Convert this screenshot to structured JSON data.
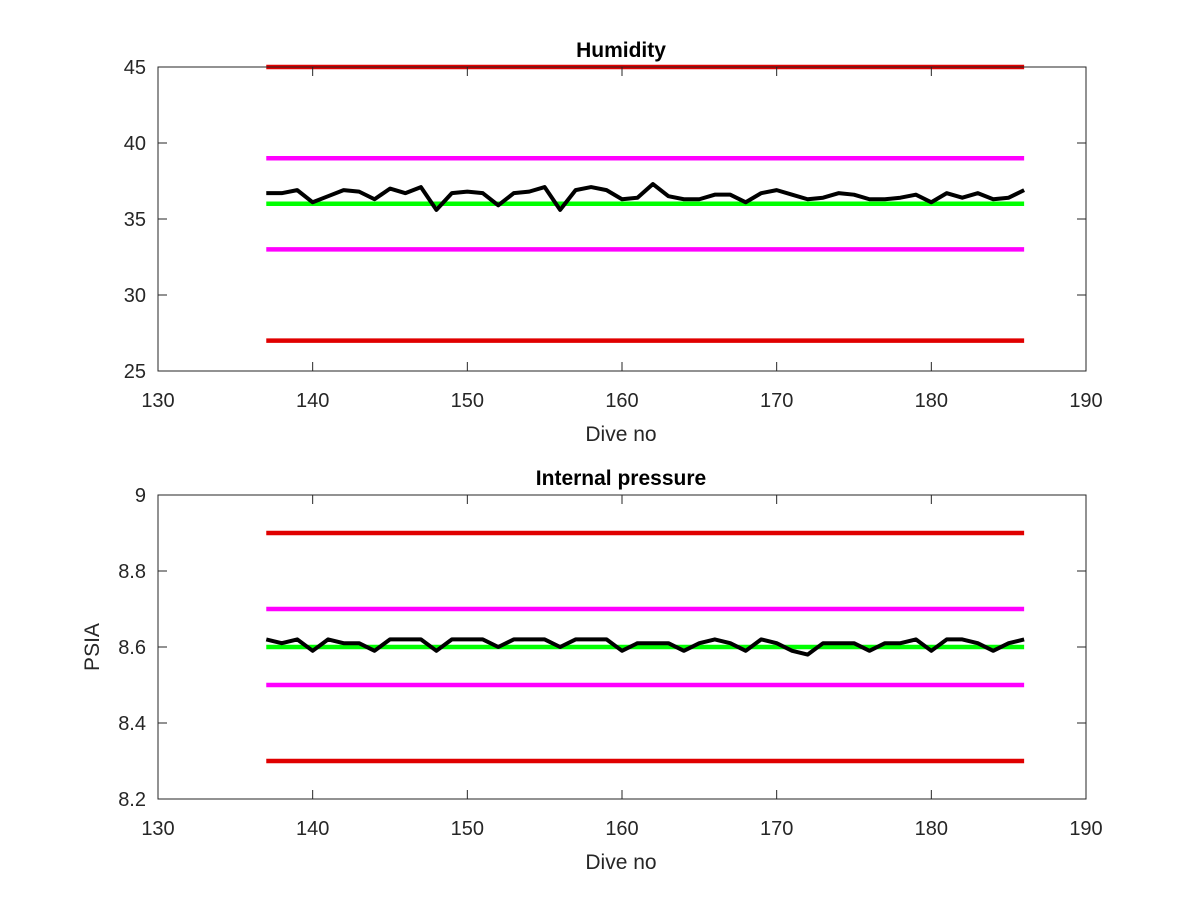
{
  "chart_data": [
    {
      "type": "line",
      "title": "Humidity",
      "xlabel": "Dive no",
      "ylabel": "",
      "xlim": [
        130,
        190
      ],
      "ylim": [
        25,
        45
      ],
      "xticks": [
        "130",
        "140",
        "150",
        "160",
        "170",
        "180",
        "190"
      ],
      "yticks": [
        "25",
        "30",
        "35",
        "40",
        "45"
      ],
      "grid": false,
      "series": [
        {
          "color": "#000000",
          "x": [
            137,
            138,
            139,
            140,
            141,
            142,
            143,
            144,
            145,
            146,
            147,
            148,
            149,
            150,
            151,
            152,
            153,
            154,
            155,
            156,
            157,
            158,
            159,
            160,
            161,
            162,
            163,
            164,
            165,
            166,
            167,
            168,
            169,
            170,
            171,
            172,
            173,
            174,
            175,
            176,
            177,
            178,
            179,
            180,
            181,
            182,
            183,
            184,
            185,
            186
          ],
          "y": [
            36.7,
            36.7,
            36.9,
            36.1,
            36.5,
            36.9,
            36.8,
            36.3,
            37.0,
            36.7,
            37.1,
            35.6,
            36.7,
            36.8,
            36.7,
            35.9,
            36.7,
            36.8,
            37.1,
            35.6,
            36.9,
            37.1,
            36.9,
            36.3,
            36.4,
            37.3,
            36.5,
            36.3,
            36.3,
            36.6,
            36.6,
            36.1,
            36.7,
            36.9,
            36.6,
            36.3,
            36.4,
            36.7,
            36.6,
            36.3,
            36.3,
            36.4,
            36.6,
            36.1,
            36.7,
            36.4,
            36.7,
            36.3,
            36.4,
            36.9
          ]
        },
        {
          "color": "#00ff00",
          "x": [
            137,
            186
          ],
          "y": [
            36,
            36
          ]
        },
        {
          "color": "#ff00ff",
          "x": [
            137,
            186
          ],
          "y": [
            39,
            39
          ]
        },
        {
          "color": "#ff00ff",
          "x": [
            137,
            186
          ],
          "y": [
            33,
            33
          ]
        },
        {
          "color": "#e00000",
          "x": [
            137,
            186
          ],
          "y": [
            45,
            45
          ]
        },
        {
          "color": "#e00000",
          "x": [
            137,
            186
          ],
          "y": [
            27,
            27
          ]
        }
      ]
    },
    {
      "type": "line",
      "title": "Internal pressure",
      "xlabel": "Dive no",
      "ylabel": "PSIA",
      "xlim": [
        130,
        190
      ],
      "ylim": [
        8.2,
        9.0
      ],
      "xticks": [
        "130",
        "140",
        "150",
        "160",
        "170",
        "180",
        "190"
      ],
      "yticks": [
        "8.2",
        "8.4",
        "8.6",
        "8.8",
        "9"
      ],
      "grid": false,
      "series": [
        {
          "color": "#000000",
          "x": [
            137,
            138,
            139,
            140,
            141,
            142,
            143,
            144,
            145,
            146,
            147,
            148,
            149,
            150,
            151,
            152,
            153,
            154,
            155,
            156,
            157,
            158,
            159,
            160,
            161,
            162,
            163,
            164,
            165,
            166,
            167,
            168,
            169,
            170,
            171,
            172,
            173,
            174,
            175,
            176,
            177,
            178,
            179,
            180,
            181,
            182,
            183,
            184,
            185,
            186
          ],
          "y": [
            8.62,
            8.61,
            8.62,
            8.59,
            8.62,
            8.61,
            8.61,
            8.59,
            8.62,
            8.62,
            8.62,
            8.59,
            8.62,
            8.62,
            8.62,
            8.6,
            8.62,
            8.62,
            8.62,
            8.6,
            8.62,
            8.62,
            8.62,
            8.59,
            8.61,
            8.61,
            8.61,
            8.59,
            8.61,
            8.62,
            8.61,
            8.59,
            8.62,
            8.61,
            8.59,
            8.58,
            8.61,
            8.61,
            8.61,
            8.59,
            8.61,
            8.61,
            8.62,
            8.59,
            8.62,
            8.62,
            8.61,
            8.59,
            8.61,
            8.62
          ]
        },
        {
          "color": "#00ff00",
          "x": [
            137,
            186
          ],
          "y": [
            8.6,
            8.6
          ]
        },
        {
          "color": "#ff00ff",
          "x": [
            137,
            186
          ],
          "y": [
            8.7,
            8.7
          ]
        },
        {
          "color": "#ff00ff",
          "x": [
            137,
            186
          ],
          "y": [
            8.5,
            8.5
          ]
        },
        {
          "color": "#e00000",
          "x": [
            137,
            186
          ],
          "y": [
            8.9,
            8.9
          ]
        },
        {
          "color": "#e00000",
          "x": [
            137,
            186
          ],
          "y": [
            8.3,
            8.3
          ]
        }
      ]
    }
  ]
}
